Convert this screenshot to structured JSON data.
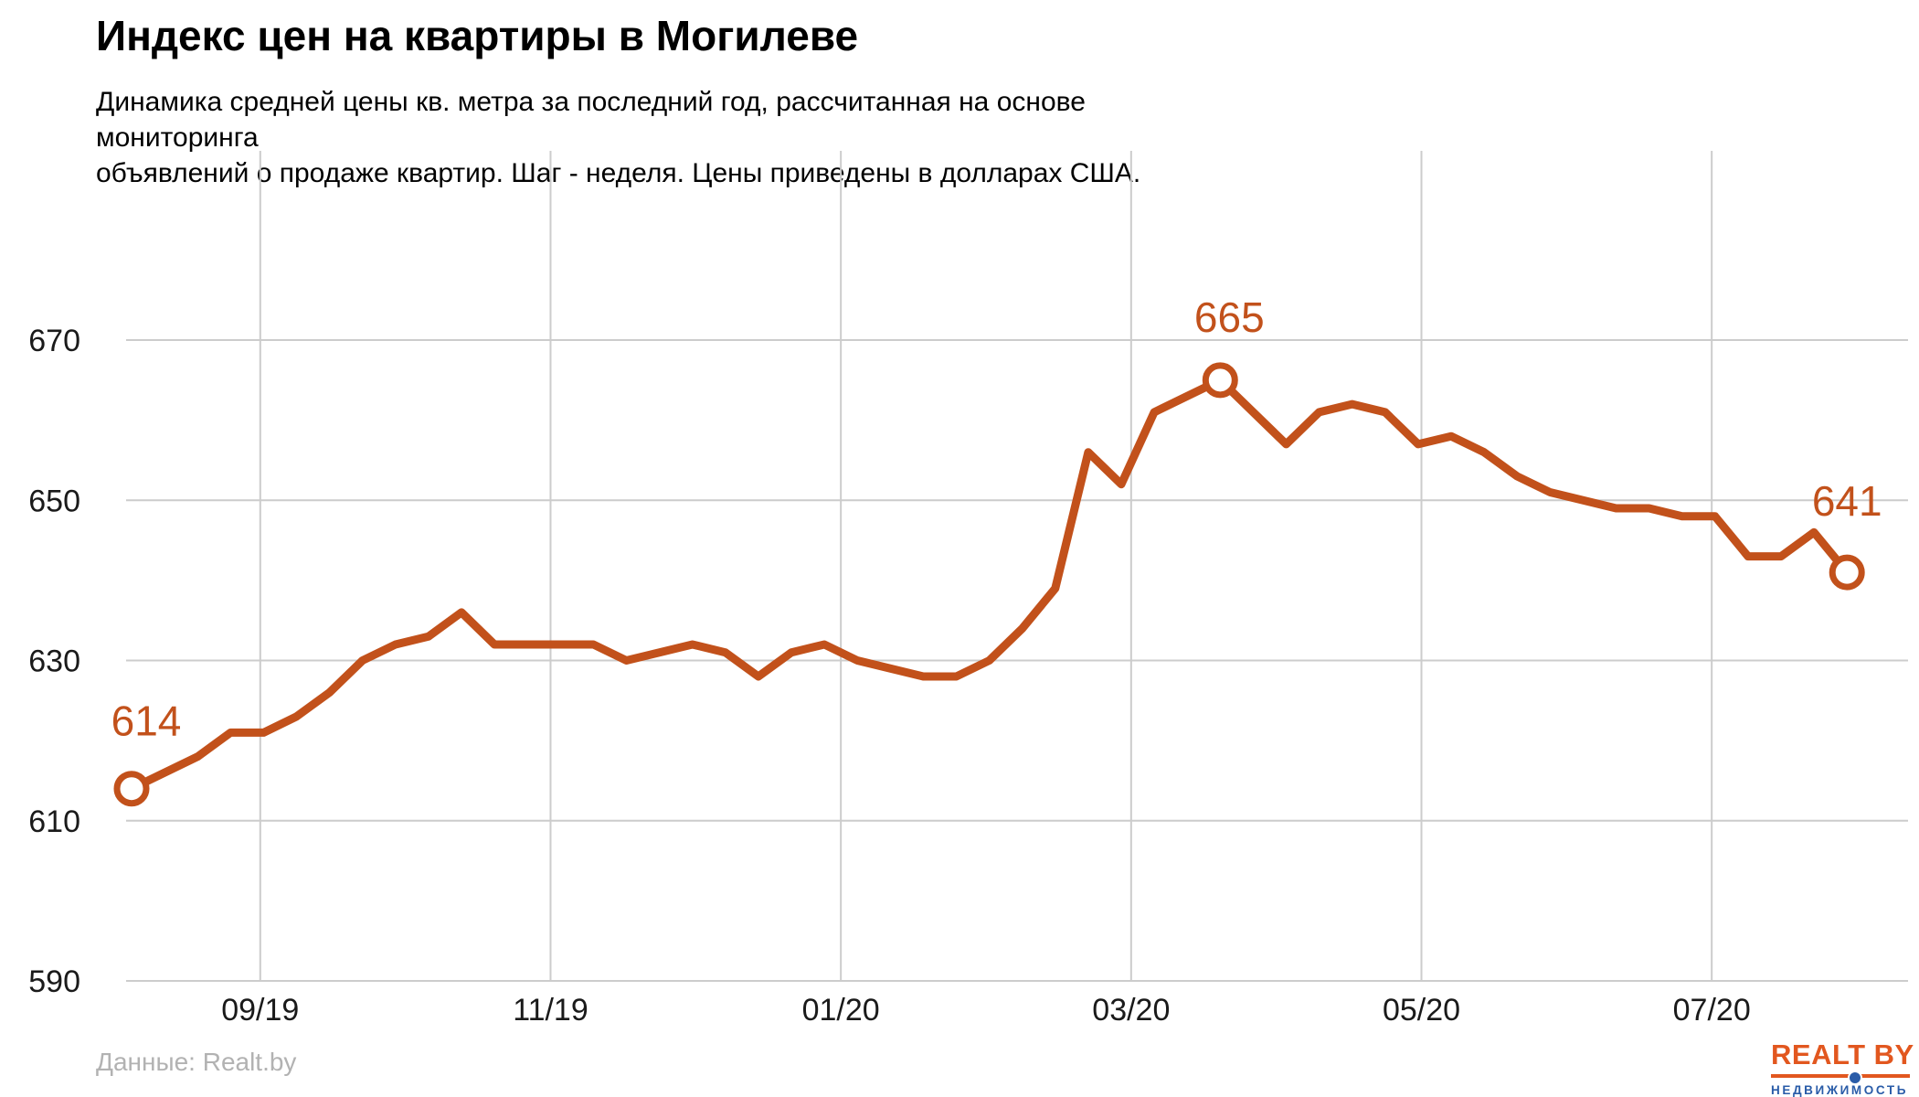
{
  "header": {
    "title": "Индекс цен на квартиры в Могилеве",
    "subtitle_line1": "Динамика средней цены кв. метра за последний год, рассчитанная на основе мониторинга",
    "subtitle_line2": "объявлений о продаже квартир. Шаг - неделя. Цены приведены в долларах США."
  },
  "footer": {
    "source": "Данные: Realt.by"
  },
  "logo": {
    "wordmark": "REALT BY",
    "tagline": "НЕДВИЖИМОСТЬ",
    "orange": "#e2571f",
    "blue": "#2a5ca8"
  },
  "colors": {
    "line": "#c2511b",
    "annotation": "#c2511b",
    "grid": "#cccccc",
    "tick_label": "#1a1a1a",
    "marker_fill": "#ffffff",
    "background": "#ffffff",
    "source_text": "#b2b2b2"
  },
  "chart_data": {
    "type": "line",
    "title": "Индекс цен на квартиры в Могилеве",
    "x_unit": "week index (шаг - неделя)",
    "n_points": 53,
    "values": [
      614,
      616,
      618,
      621,
      621,
      623,
      626,
      630,
      632,
      633,
      636,
      632,
      632,
      632,
      632,
      630,
      631,
      632,
      631,
      628,
      631,
      632,
      630,
      629,
      628,
      628,
      630,
      634,
      639,
      656,
      652,
      661,
      663,
      665,
      661,
      657,
      661,
      662,
      661,
      657,
      658,
      656,
      653,
      651,
      650,
      649,
      649,
      648,
      648,
      643,
      643,
      646,
      641
    ],
    "ylim": [
      590,
      694
    ],
    "yticks": [
      590,
      610,
      630,
      650,
      670
    ],
    "xticks": [
      {
        "week": 3.9,
        "label": "09/19"
      },
      {
        "week": 12.7,
        "label": "11/19"
      },
      {
        "week": 21.5,
        "label": "01/20"
      },
      {
        "week": 30.3,
        "label": "03/20"
      },
      {
        "week": 39.1,
        "label": "05/20"
      },
      {
        "week": 47.9,
        "label": "07/20"
      }
    ],
    "annotations": [
      {
        "index": 0,
        "label": "614"
      },
      {
        "index": 33,
        "label": "665"
      },
      {
        "index": 52,
        "label": "641"
      }
    ],
    "marker_indices": [
      0,
      33,
      52
    ],
    "grid": true,
    "legend": "none",
    "currency": "USD"
  }
}
